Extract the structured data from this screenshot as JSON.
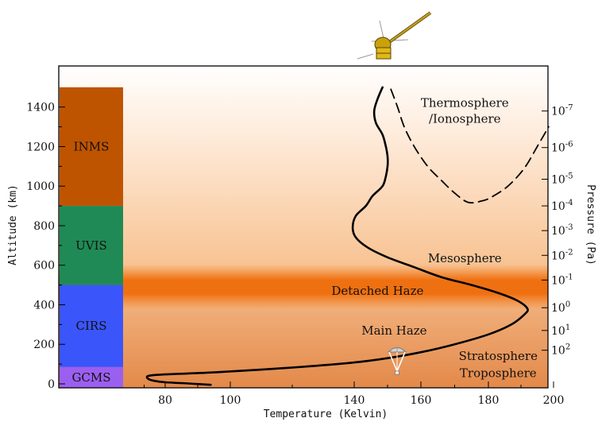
{
  "chart_data": {
    "type": "line",
    "xlabel": "Temperature (Kelvin)",
    "ylabel": "Altitude (km)",
    "y2label": "Pressure (Pa)",
    "xlim": [
      60,
      200
    ],
    "ylim": [
      0,
      1500
    ],
    "x_ticks": [
      80,
      100,
      140,
      160,
      180,
      200
    ],
    "y_ticks": [
      0,
      200,
      400,
      600,
      800,
      1000,
      1200,
      1400
    ],
    "pressure_ticks": [
      {
        "base": "10",
        "exp": "-7",
        "altitude": 1380
      },
      {
        "base": "10",
        "exp": "-6",
        "altitude": 1195
      },
      {
        "base": "10",
        "exp": "-5",
        "altitude": 1035
      },
      {
        "base": "10",
        "exp": "-4",
        "altitude": 900
      },
      {
        "base": "10",
        "exp": "-3",
        "altitude": 775
      },
      {
        "base": "10",
        "exp": "-2",
        "altitude": 650
      },
      {
        "base": "10",
        "exp": "-1",
        "altitude": 525
      },
      {
        "base": "10",
        "exp": "0",
        "altitude": 385
      },
      {
        "base": "10",
        "exp": "1",
        "altitude": 270
      },
      {
        "base": "10",
        "exp": "2",
        "altitude": 170
      }
    ],
    "instruments": [
      {
        "name": "INMS",
        "from": 900,
        "to": 1500,
        "color": "#bf5400"
      },
      {
        "name": "UVIS",
        "from": 500,
        "to": 900,
        "color": "#1f8a55"
      },
      {
        "name": "CIRS",
        "from": 85,
        "to": 500,
        "color": "#3a55fa"
      },
      {
        "name": "GCMS",
        "from": -20,
        "to": 85,
        "color": "#9b5ff0"
      }
    ],
    "regions": [
      {
        "label": "Thermosphere",
        "x": 173,
        "y": 1420
      },
      {
        "label": "/Ionosphere",
        "x": 173,
        "y": 1340
      },
      {
        "label": "Mesosphere",
        "x": 173,
        "y": 635
      },
      {
        "label": "Detached Haze",
        "x": 147,
        "y": 470
      },
      {
        "label": "Main Haze",
        "x": 152,
        "y": 270
      },
      {
        "label": "Stratosphere",
        "x": 183,
        "y": 140
      },
      {
        "label": "Troposphere",
        "x": 183,
        "y": 55
      }
    ],
    "detached_haze_altitude": 490,
    "series": [
      {
        "style": "solid",
        "x": [
          94,
          87,
          80,
          75,
          72,
          72,
          80,
          95,
          110,
          125,
          140,
          150,
          160,
          170,
          180,
          187,
          191,
          192,
          189,
          183,
          175,
          166,
          158,
          150,
          144,
          140.5,
          139.5,
          140.5,
          143.5,
          145.5,
          148.5,
          149.5,
          150,
          150,
          149.5,
          148.5,
          146.5,
          146,
          147,
          148.5
        ],
        "y": [
          -5,
          2,
          8,
          15,
          25,
          40,
          48,
          58,
          72,
          88,
          108,
          130,
          160,
          200,
          250,
          300,
          350,
          380,
          420,
          460,
          500,
          540,
          590,
          640,
          690,
          740,
          790,
          850,
          900,
          950,
          1000,
          1050,
          1100,
          1150,
          1200,
          1260,
          1320,
          1380,
          1440,
          1500
        ]
      },
      {
        "style": "dashed",
        "x": [
          151,
          153,
          155,
          158,
          162,
          166,
          170,
          174,
          178,
          181,
          186,
          191,
          195,
          198.5
        ],
        "y": [
          1490,
          1400,
          1300,
          1200,
          1100,
          1030,
          965,
          918,
          925,
          945,
          1000,
          1090,
          1200,
          1300
        ]
      }
    ]
  }
}
